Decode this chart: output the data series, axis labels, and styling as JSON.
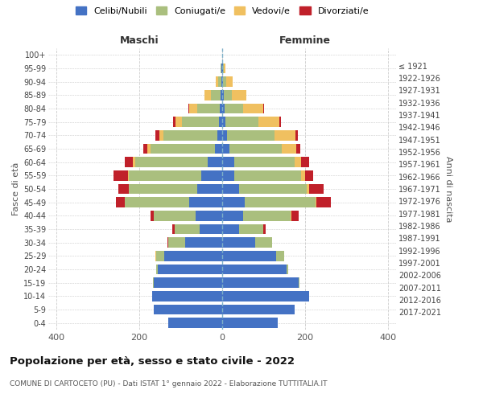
{
  "age_groups": [
    "0-4",
    "5-9",
    "10-14",
    "15-19",
    "20-24",
    "25-29",
    "30-34",
    "35-39",
    "40-44",
    "45-49",
    "50-54",
    "55-59",
    "60-64",
    "65-69",
    "70-74",
    "75-79",
    "80-84",
    "85-89",
    "90-94",
    "95-99",
    "100+"
  ],
  "birth_years": [
    "2017-2021",
    "2012-2016",
    "2007-2011",
    "2002-2006",
    "1997-2001",
    "1992-1996",
    "1987-1991",
    "1982-1986",
    "1977-1981",
    "1972-1976",
    "1967-1971",
    "1962-1966",
    "1957-1961",
    "1952-1956",
    "1947-1951",
    "1942-1946",
    "1937-1941",
    "1932-1936",
    "1927-1931",
    "1922-1926",
    "≤ 1921"
  ],
  "maschi": {
    "celibi": [
      130,
      165,
      170,
      165,
      155,
      140,
      90,
      55,
      65,
      80,
      60,
      50,
      35,
      18,
      12,
      8,
      5,
      3,
      2,
      1,
      0
    ],
    "coniugati": [
      0,
      0,
      0,
      2,
      5,
      20,
      40,
      60,
      100,
      155,
      165,
      175,
      175,
      155,
      130,
      90,
      55,
      25,
      8,
      2,
      0
    ],
    "vedovi": [
      0,
      0,
      0,
      0,
      0,
      2,
      0,
      0,
      0,
      1,
      1,
      2,
      5,
      8,
      10,
      15,
      20,
      15,
      5,
      1,
      0
    ],
    "divorziati": [
      0,
      0,
      0,
      0,
      0,
      0,
      2,
      5,
      8,
      20,
      25,
      35,
      20,
      10,
      10,
      5,
      2,
      0,
      0,
      0,
      0
    ]
  },
  "femmine": {
    "nubili": [
      135,
      175,
      210,
      185,
      155,
      130,
      80,
      40,
      50,
      55,
      40,
      30,
      30,
      18,
      12,
      8,
      5,
      3,
      2,
      1,
      0
    ],
    "coniugate": [
      0,
      0,
      0,
      2,
      5,
      20,
      40,
      60,
      115,
      170,
      165,
      160,
      145,
      125,
      115,
      80,
      45,
      20,
      8,
      2,
      0
    ],
    "vedove": [
      0,
      0,
      0,
      0,
      0,
      0,
      0,
      0,
      2,
      3,
      5,
      10,
      15,
      35,
      50,
      50,
      50,
      35,
      15,
      5,
      0
    ],
    "divorziate": [
      0,
      0,
      0,
      0,
      0,
      0,
      0,
      5,
      18,
      35,
      35,
      20,
      20,
      10,
      5,
      3,
      2,
      0,
      0,
      0,
      0
    ]
  },
  "colors": {
    "celibi": "#4472C4",
    "coniugati": "#AABF7E",
    "vedovi": "#F0C060",
    "divorziati": "#C0202A"
  },
  "title": "Popolazione per età, sesso e stato civile - 2022",
  "subtitle": "COMUNE DI CARTOCETO (PU) - Dati ISTAT 1° gennaio 2022 - Elaborazione TUTTITALIA.IT",
  "xlabel_left": "Maschi",
  "xlabel_right": "Femmine",
  "ylabel_left": "Fasce di età",
  "ylabel_right": "Anni di nascita",
  "xlim": 420,
  "legend_labels": [
    "Celibi/Nubili",
    "Coniugati/e",
    "Vedovi/e",
    "Divorziati/e"
  ],
  "bg_color": "#ffffff",
  "grid_color": "#cccccc",
  "center_line_color": "#7EB0C8"
}
